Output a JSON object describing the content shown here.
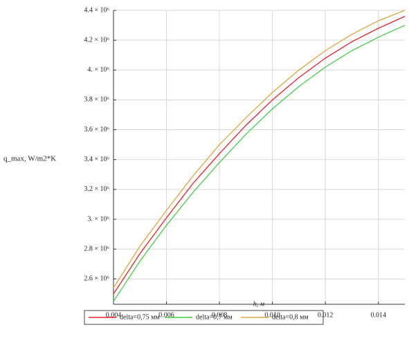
{
  "chart_data": {
    "type": "line",
    "y_label": "q_max, W/m2*K",
    "x_label": "h, м",
    "x": [
      0.004,
      0.005,
      0.006,
      0.007,
      0.008,
      0.009,
      0.01,
      0.011,
      0.012,
      0.013,
      0.014,
      0.015
    ],
    "series": [
      {
        "name": "delta=0,75 мм",
        "color": "#e3212b",
        "values": [
          2500000,
          2770000,
          3010000,
          3240000,
          3440000,
          3630000,
          3800000,
          3950000,
          4080000,
          4190000,
          4280000,
          4360000
        ]
      },
      {
        "name": "delta=0,7 мм",
        "color": "#44cc44",
        "values": [
          2450000,
          2720000,
          2960000,
          3180000,
          3380000,
          3570000,
          3740000,
          3890000,
          4020000,
          4130000,
          4220000,
          4300000
        ]
      },
      {
        "name": "delta=0,8 мм",
        "color": "#dda63a",
        "values": [
          2540000,
          2820000,
          3060000,
          3290000,
          3500000,
          3680000,
          3850000,
          4000000,
          4130000,
          4240000,
          4330000,
          4400000
        ]
      }
    ],
    "xlim": [
      0.004,
      0.015
    ],
    "ylim": [
      2430000,
      4400000
    ],
    "xticks": [
      0.004,
      0.006,
      0.008,
      {
        "value": 0.01,
        "label": "0.010"
      },
      0.012,
      0.014
    ],
    "yticks": [
      {
        "value": 2600000,
        "label": "2.6 × 10⁶"
      },
      {
        "value": 2800000,
        "label": "2.8 × 10⁶"
      },
      {
        "value": 3000000,
        "label": "3. × 10⁶"
      },
      {
        "value": 3200000,
        "label": "3.2 × 10⁶"
      },
      {
        "value": 3400000,
        "label": "3.4 × 10⁶"
      },
      {
        "value": 3600000,
        "label": "3.6 × 10⁶"
      },
      {
        "value": 3800000,
        "label": "3.8 × 10⁶"
      },
      {
        "value": 4000000,
        "label": "4. × 10⁶"
      },
      {
        "value": 4200000,
        "label": "4.2 × 10⁶"
      },
      {
        "value": 4400000,
        "label": "4.4 × 10⁶"
      }
    ],
    "grid": true
  }
}
